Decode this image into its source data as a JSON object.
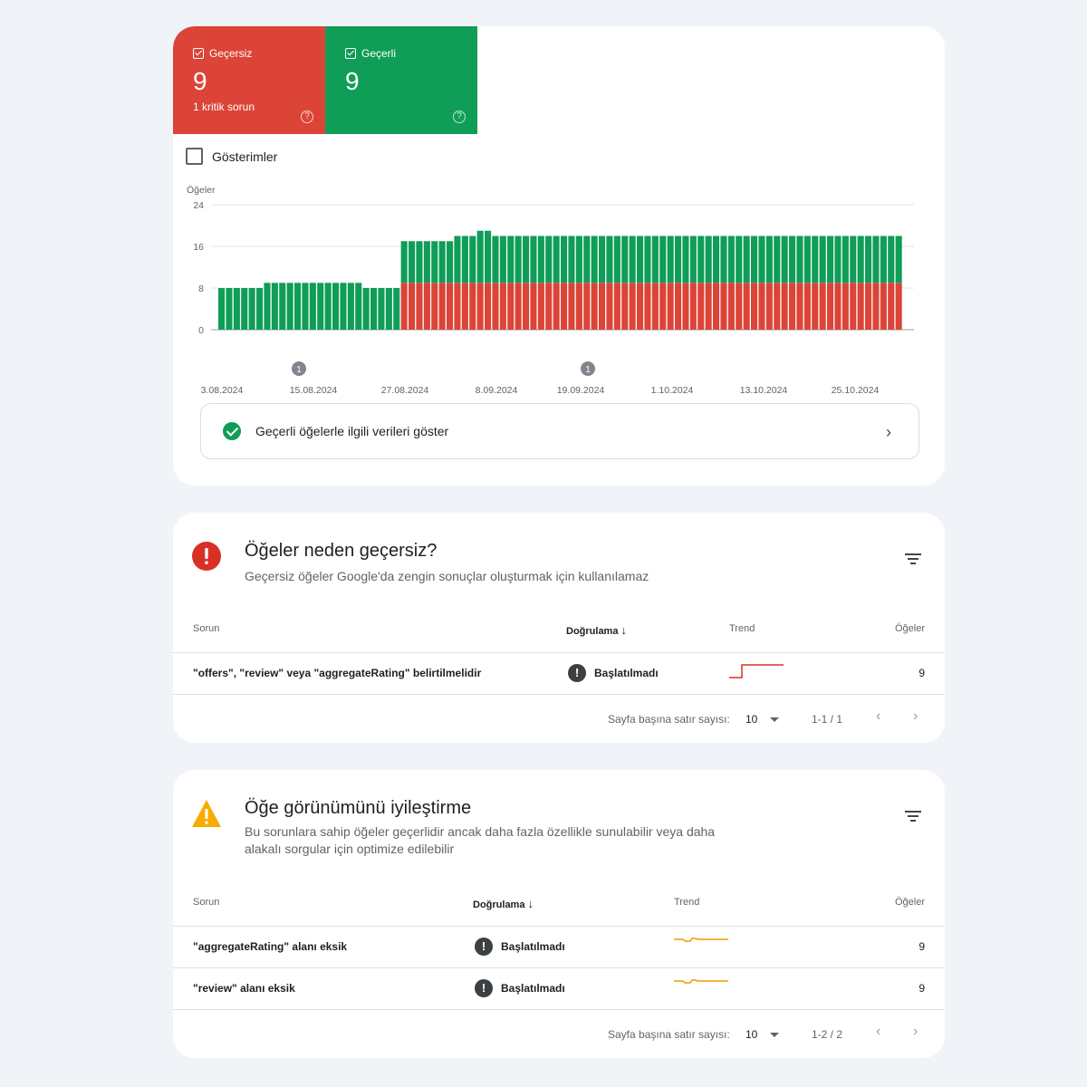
{
  "tiles": {
    "invalid": {
      "label": "Geçersiz",
      "count": "9",
      "sub": "1 kritik sorun",
      "help": "?"
    },
    "valid": {
      "label": "Geçerli",
      "count": "9",
      "help": "?"
    }
  },
  "impressions_label": "Gösterimler",
  "chart_data": {
    "type": "bar",
    "stacked": true,
    "ylabel": "Öğeler",
    "ylim": [
      0,
      24
    ],
    "yticks": [
      0,
      8,
      16,
      24
    ],
    "grid": true,
    "x_tick_labels": [
      "3.08.2024",
      "15.08.2024",
      "27.08.2024",
      "8.09.2024",
      "19.09.2024",
      "1.10.2024",
      "13.10.2024",
      "25.10.2024"
    ],
    "annotations": [
      {
        "x": "12.08.2024",
        "label": "1"
      },
      {
        "x": "19.09.2024",
        "label": "1"
      }
    ],
    "colors": {
      "Geçerli": "#0f9d58",
      "Geçersiz": "#db4437"
    },
    "series": [
      {
        "name": "Geçerli",
        "values": [
          8,
          8,
          8,
          8,
          8,
          8,
          9,
          9,
          9,
          9,
          9,
          9,
          9,
          9,
          9,
          9,
          9,
          9,
          9,
          8,
          8,
          8,
          8,
          8,
          8,
          8,
          8,
          8,
          8,
          8,
          8,
          9,
          9,
          9,
          10,
          10,
          9,
          9,
          9,
          9,
          9,
          9,
          9,
          9,
          9,
          9,
          9,
          9,
          9,
          9,
          9,
          9,
          9,
          9,
          9,
          9,
          9,
          9,
          9,
          9,
          9,
          9,
          9,
          9,
          9,
          9,
          9,
          9,
          9,
          9,
          9,
          9,
          9,
          9,
          9,
          9,
          9,
          9,
          9,
          9,
          9,
          9,
          9,
          9,
          9,
          9,
          9,
          9,
          9,
          9
        ]
      },
      {
        "name": "Geçersiz",
        "values": [
          0,
          0,
          0,
          0,
          0,
          0,
          0,
          0,
          0,
          0,
          0,
          0,
          0,
          0,
          0,
          0,
          0,
          0,
          0,
          0,
          0,
          0,
          0,
          0,
          9,
          9,
          9,
          9,
          9,
          9,
          9,
          9,
          9,
          9,
          9,
          9,
          9,
          9,
          9,
          9,
          9,
          9,
          9,
          9,
          9,
          9,
          9,
          9,
          9,
          9,
          9,
          9,
          9,
          9,
          9,
          9,
          9,
          9,
          9,
          9,
          9,
          9,
          9,
          9,
          9,
          9,
          9,
          9,
          9,
          9,
          9,
          9,
          9,
          9,
          9,
          9,
          9,
          9,
          9,
          9,
          9,
          9,
          9,
          9,
          9,
          9,
          9,
          9,
          9,
          9
        ]
      }
    ]
  },
  "valid_link": {
    "label": "Geçerli öğelerle ilgili verileri göster",
    "chevron": "›"
  },
  "invalid_section": {
    "icon": "error-icon",
    "title": "Öğeler neden geçersiz?",
    "desc": "Geçersiz öğeler Google'da zengin sonuçlar oluşturmak için kullanılamaz",
    "columns": {
      "issue": "Sorun",
      "validation": "Doğrulama",
      "trend": "Trend",
      "items": "Öğeler"
    },
    "sort_icon": "↓",
    "rows": [
      {
        "issue": "\"offers\", \"review\" veya \"aggregateRating\" belirtilmelidir",
        "status": "Başlatılmadı",
        "status_icon": "!",
        "items": "9",
        "trend_color": "#d93025"
      }
    ],
    "pager": {
      "label": "Sayfa başına satır sayısı:",
      "rows": "10",
      "range": "1-1 / 1",
      "prev": "‹",
      "next": "›"
    }
  },
  "improve_section": {
    "icon": "warning-icon",
    "title": "Öğe görünümünü iyileştirme",
    "desc": "Bu sorunlara sahip öğeler geçerlidir ancak daha fazla özellikle sunulabilir veya daha alakalı sorgular için optimize edilebilir",
    "columns": {
      "issue": "Sorun",
      "validation": "Doğrulama",
      "trend": "Trend",
      "items": "Öğeler"
    },
    "sort_icon": "↓",
    "rows": [
      {
        "issue": "\"aggregateRating\" alanı eksik",
        "status": "Başlatılmadı",
        "status_icon": "!",
        "items": "9",
        "trend_color": "#f29900"
      },
      {
        "issue": "\"review\" alanı eksik",
        "status": "Başlatılmadı",
        "status_icon": "!",
        "items": "9",
        "trend_color": "#f29900"
      }
    ],
    "pager": {
      "label": "Sayfa başına satır sayısı:",
      "rows": "10",
      "range": "1-2 / 2",
      "prev": "‹",
      "next": "›"
    }
  }
}
